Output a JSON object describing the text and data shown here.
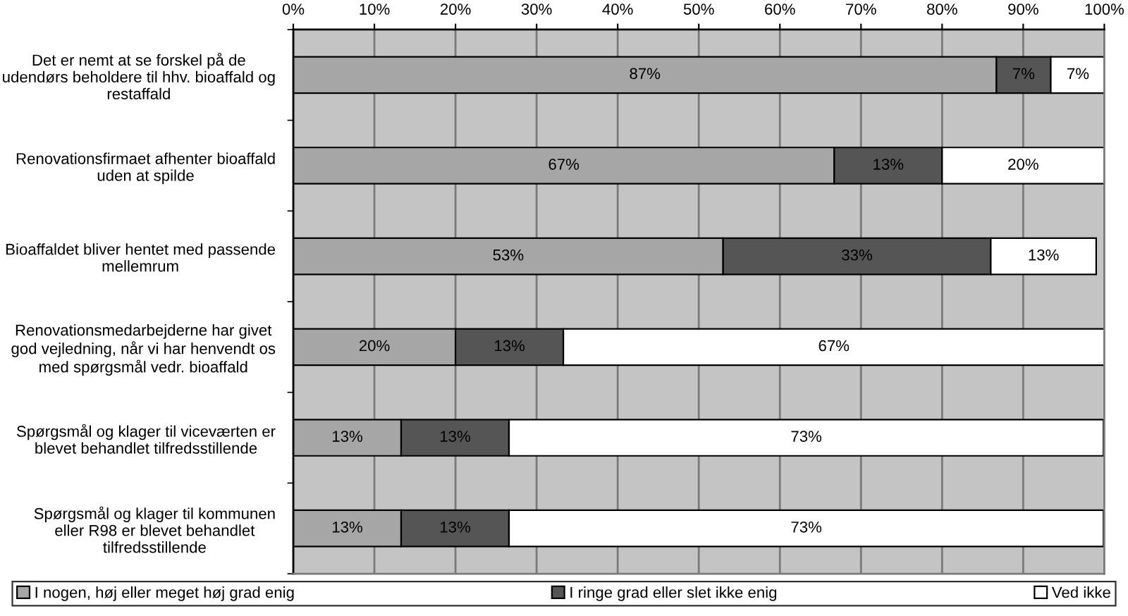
{
  "chart_data": {
    "type": "bar",
    "orientation": "horizontal",
    "stacked": true,
    "categories": [
      "Det er nemt at se forskel på de\nudendørs beholdere til hhv. bioaffald og\nrestaffald",
      "Renovationsfirmaet afhenter bioaffald\nuden at spilde",
      "Bioaffaldet bliver hentet med passende\nmellemrum",
      "Renovationsmedarbejderne har givet\ngod vejledning, når vi har henvendt os\nmed spørgsmål vedr. bioaffald",
      "Spørgsmål og klager til viceværten er\nblevet behandlet tilfredsstillende",
      "Spørgsmål og klager til kommunen\neller R98 er blevet behandlet\ntilfredsstillende"
    ],
    "series": [
      {
        "name": "I nogen, høj eller meget høj grad enig",
        "color": "#a6a6a6",
        "values": [
          86.7,
          66.7,
          53,
          20,
          13.3,
          13.3
        ],
        "value_labels": [
          "87%",
          "67%",
          "53%",
          "20%",
          "13%",
          "13%"
        ]
      },
      {
        "name": "I ringe grad eller slet ikke enig",
        "color": "#555555",
        "values": [
          6.7,
          13.3,
          33,
          13.3,
          13.3,
          13.3
        ],
        "value_labels": [
          "7%",
          "13%",
          "33%",
          "13%",
          "13%",
          "13%"
        ]
      },
      {
        "name": "Ved ikke",
        "color": "#ffffff",
        "values": [
          6.7,
          20,
          13,
          66.7,
          73.3,
          73.3
        ],
        "value_labels": [
          "7%",
          "20%",
          "13%",
          "67%",
          "73%",
          "73%"
        ]
      }
    ],
    "xlim": [
      0,
      100
    ],
    "xticks": [
      {
        "value": 0,
        "label": "0%"
      },
      {
        "value": 10,
        "label": "10%"
      },
      {
        "value": 20,
        "label": "20%"
      },
      {
        "value": 30,
        "label": "30%"
      },
      {
        "value": 40,
        "label": "40%"
      },
      {
        "value": 50,
        "label": "50%"
      },
      {
        "value": 60,
        "label": "60%"
      },
      {
        "value": 70,
        "label": "70%"
      },
      {
        "value": 80,
        "label": "80%"
      },
      {
        "value": 90,
        "label": "90%"
      },
      {
        "value": 100,
        "label": "100%"
      }
    ],
    "grid": "x",
    "legend": "bottom"
  }
}
